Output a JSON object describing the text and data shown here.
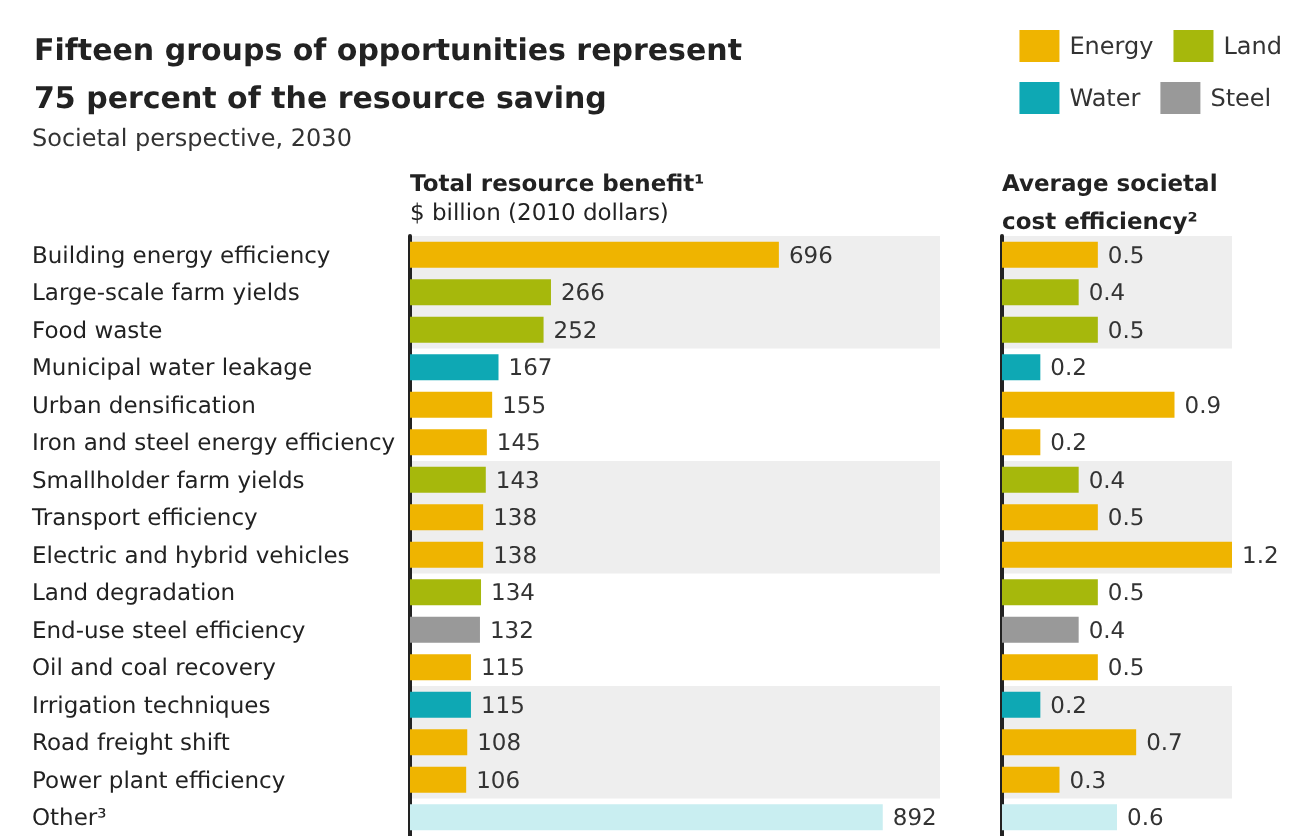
{
  "chart_data": [
    {
      "type": "bar",
      "orientation": "horizontal",
      "stacked": true,
      "title": "Fifteen groups of opportunities represent 75 percent of the resource saving",
      "subtitle": "Societal perspective, 2030",
      "xlabel": "Total resource benefit¹",
      "annotations": [
        "$ billion (2010 dollars)"
      ],
      "categories": [
        "Building energy efficiency",
        "Large-scale farm yields",
        "Food waste",
        "Municipal water leakage",
        "Urban densification",
        "Iron and steel energy efficiency",
        "Smallholder farm yields",
        "Transport efficiency",
        "Electric and hybrid vehicles",
        "Land degradation",
        "End-use steel efficiency",
        "Oil and coal recovery",
        "Irrigation techniques",
        "Road freight shift",
        "Power plant efficiency",
        "Other³"
      ],
      "series": [
        {
          "name": "Energy",
          "color": "#efb400",
          "values": [
            696,
            null,
            null,
            null,
            155,
            145,
            null,
            138,
            138,
            null,
            null,
            115,
            null,
            108,
            106,
            null
          ]
        },
        {
          "name": "Land",
          "color": "#a6b80c",
          "values": [
            null,
            266,
            252,
            null,
            null,
            null,
            143,
            null,
            null,
            134,
            null,
            null,
            null,
            null,
            null,
            null
          ]
        },
        {
          "name": "Water",
          "color": "#0ea8b4",
          "values": [
            null,
            null,
            null,
            167,
            null,
            null,
            null,
            null,
            null,
            null,
            null,
            null,
            115,
            null,
            null,
            null
          ]
        },
        {
          "name": "Steel",
          "color": "#999999",
          "values": [
            null,
            null,
            null,
            null,
            null,
            null,
            null,
            null,
            null,
            null,
            132,
            null,
            null,
            null,
            null,
            null
          ]
        },
        {
          "color": "#c9eef1",
          "values": [
            null,
            null,
            null,
            null,
            null,
            null,
            null,
            null,
            null,
            null,
            null,
            null,
            null,
            null,
            null,
            892
          ]
        }
      ],
      "bands": [
        {
          "axis": "y",
          "from": "Building energy efficiency",
          "to": "Food waste",
          "color": "#eeeeee"
        },
        {
          "axis": "y",
          "from": "Smallholder farm yields",
          "to": "Electric and hybrid vehicles",
          "color": "#eeeeee"
        },
        {
          "axis": "y",
          "from": "Irrigation techniques",
          "to": "Power plant efficiency",
          "color": "#eeeeee"
        }
      ],
      "data_labels": true,
      "legend": "top right",
      "grid": false,
      "tick_labels": "y"
    },
    {
      "type": "bar",
      "orientation": "horizontal",
      "stacked": true,
      "xlabel": "Average societal cost efficiency²",
      "categories": [
        "Building energy efficiency",
        "Large-scale farm yields",
        "Food waste",
        "Municipal water leakage",
        "Urban densification",
        "Iron and steel energy efficiency",
        "Smallholder farm yields",
        "Transport efficiency",
        "Electric and hybrid vehicles",
        "Land degradation",
        "End-use steel efficiency",
        "Oil and coal recovery",
        "Irrigation techniques",
        "Road freight shift",
        "Power plant efficiency",
        "Other³"
      ],
      "series": [
        {
          "color": "#efb400",
          "values": [
            0.5,
            null,
            null,
            null,
            0.9,
            0.2,
            null,
            0.5,
            1.2,
            null,
            null,
            0.5,
            null,
            0.7,
            0.3,
            null
          ]
        },
        {
          "color": "#a6b80c",
          "values": [
            null,
            0.4,
            0.5,
            null,
            null,
            null,
            0.4,
            null,
            null,
            0.5,
            null,
            null,
            null,
            null,
            null,
            null
          ]
        },
        {
          "color": "#0ea8b4",
          "values": [
            null,
            null,
            null,
            0.2,
            null,
            null,
            null,
            null,
            null,
            null,
            null,
            null,
            0.2,
            null,
            null,
            null
          ]
        },
        {
          "color": "#999999",
          "values": [
            null,
            null,
            null,
            null,
            null,
            null,
            null,
            null,
            null,
            null,
            0.4,
            null,
            null,
            null,
            null,
            null
          ]
        },
        {
          "color": "#c9eef1",
          "values": [
            null,
            null,
            null,
            null,
            null,
            null,
            null,
            null,
            null,
            null,
            null,
            null,
            null,
            null,
            null,
            0.6
          ]
        }
      ],
      "bands": [
        {
          "axis": "y",
          "from": "Building energy efficiency",
          "to": "Food waste",
          "color": "#eeeeee"
        },
        {
          "axis": "y",
          "from": "Smallholder farm yields",
          "to": "Electric and hybrid vehicles",
          "color": "#eeeeee"
        },
        {
          "axis": "y",
          "from": "Irrigation techniques",
          "to": "Power plant efficiency",
          "color": "#eeeeee"
        }
      ],
      "data_labels": true,
      "legend": false,
      "grid": false,
      "tick_labels": false
    }
  ]
}
